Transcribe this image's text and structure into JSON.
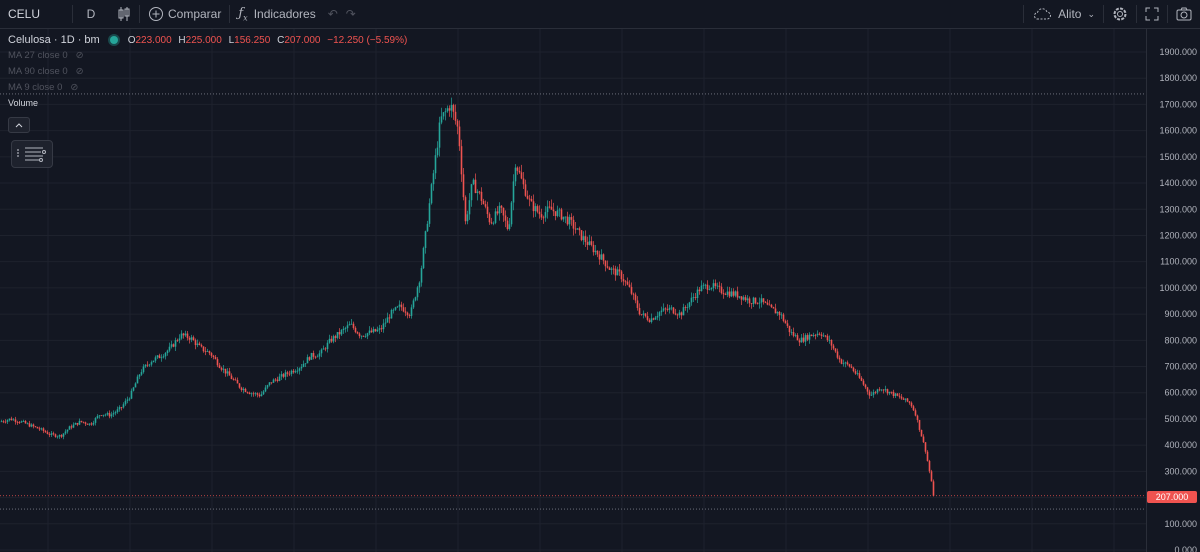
{
  "toolbar": {
    "symbol": "CELU",
    "interval": "D",
    "compare_label": "Comparar",
    "indicators_label": "Indicadores",
    "layout_label": "Alito"
  },
  "legend": {
    "name": "Celulosa · 1D · bm",
    "o_label": "O",
    "o": "223.000",
    "h_label": "H",
    "h": "225.000",
    "l_label": "L",
    "l": "156.250",
    "c_label": "C",
    "c": "207.000",
    "change": "−12.250 (−5.59%)",
    "ma": [
      "MA 27 close 0",
      "MA 90 close 0",
      "MA 9 close 0"
    ],
    "volume": "Volume"
  },
  "colors": {
    "up": "#26a69a",
    "down": "#ef5350",
    "background": "#131722",
    "grid": "#1e222d"
  },
  "chart_data": {
    "type": "candlestick",
    "y_ticks": [
      "1900.000",
      "1800.000",
      "1700.000",
      "1600.000",
      "1500.000",
      "1400.000",
      "1300.000",
      "1200.000",
      "1100.000",
      "1000.000",
      "900.000",
      "800.000",
      "700.000",
      "600.000",
      "500.000",
      "400.000",
      "300.000",
      "200.000",
      "100.000",
      "0.000"
    ],
    "ylim": [
      0,
      1950
    ],
    "last_price": "207.000",
    "last_value": 207,
    "high_line": 1740,
    "low_line": 156.25,
    "trend": [
      [
        0,
        490
      ],
      [
        10,
        500
      ],
      [
        20,
        490
      ],
      [
        30,
        475
      ],
      [
        40,
        460
      ],
      [
        50,
        440
      ],
      [
        60,
        435
      ],
      [
        70,
        470
      ],
      [
        80,
        490
      ],
      [
        90,
        480
      ],
      [
        100,
        520
      ],
      [
        110,
        515
      ],
      [
        120,
        540
      ],
      [
        130,
        590
      ],
      [
        140,
        680
      ],
      [
        150,
        720
      ],
      [
        160,
        740
      ],
      [
        170,
        770
      ],
      [
        180,
        820
      ],
      [
        190,
        810
      ],
      [
        200,
        770
      ],
      [
        210,
        750
      ],
      [
        220,
        700
      ],
      [
        230,
        660
      ],
      [
        240,
        620
      ],
      [
        250,
        600
      ],
      [
        260,
        590
      ],
      [
        270,
        640
      ],
      [
        280,
        660
      ],
      [
        290,
        680
      ],
      [
        300,
        700
      ],
      [
        310,
        740
      ],
      [
        320,
        750
      ],
      [
        330,
        800
      ],
      [
        340,
        830
      ],
      [
        350,
        860
      ],
      [
        360,
        820
      ],
      [
        370,
        830
      ],
      [
        380,
        840
      ],
      [
        390,
        900
      ],
      [
        400,
        930
      ],
      [
        410,
        900
      ],
      [
        420,
        1050
      ],
      [
        430,
        1350
      ],
      [
        440,
        1640
      ],
      [
        450,
        1700
      ],
      [
        458,
        1600
      ],
      [
        465,
        1250
      ],
      [
        472,
        1400
      ],
      [
        480,
        1350
      ],
      [
        490,
        1250
      ],
      [
        500,
        1300
      ],
      [
        508,
        1220
      ],
      [
        515,
        1480
      ],
      [
        522,
        1400
      ],
      [
        530,
        1320
      ],
      [
        540,
        1280
      ],
      [
        550,
        1300
      ],
      [
        560,
        1280
      ],
      [
        570,
        1250
      ],
      [
        580,
        1200
      ],
      [
        590,
        1160
      ],
      [
        600,
        1120
      ],
      [
        610,
        1070
      ],
      [
        620,
        1050
      ],
      [
        630,
        990
      ],
      [
        640,
        900
      ],
      [
        650,
        880
      ],
      [
        660,
        910
      ],
      [
        670,
        920
      ],
      [
        680,
        900
      ],
      [
        690,
        950
      ],
      [
        700,
        1000
      ],
      [
        710,
        1010
      ],
      [
        720,
        990
      ],
      [
        730,
        980
      ],
      [
        740,
        970
      ],
      [
        750,
        950
      ],
      [
        760,
        950
      ],
      [
        770,
        920
      ],
      [
        780,
        900
      ],
      [
        790,
        830
      ],
      [
        800,
        800
      ],
      [
        810,
        820
      ],
      [
        820,
        830
      ],
      [
        830,
        790
      ],
      [
        840,
        720
      ],
      [
        850,
        700
      ],
      [
        860,
        650
      ],
      [
        870,
        590
      ],
      [
        880,
        620
      ],
      [
        890,
        600
      ],
      [
        900,
        580
      ],
      [
        910,
        560
      ],
      [
        915,
        520
      ],
      [
        920,
        450
      ],
      [
        925,
        380
      ],
      [
        930,
        280
      ],
      [
        934,
        207
      ]
    ]
  }
}
